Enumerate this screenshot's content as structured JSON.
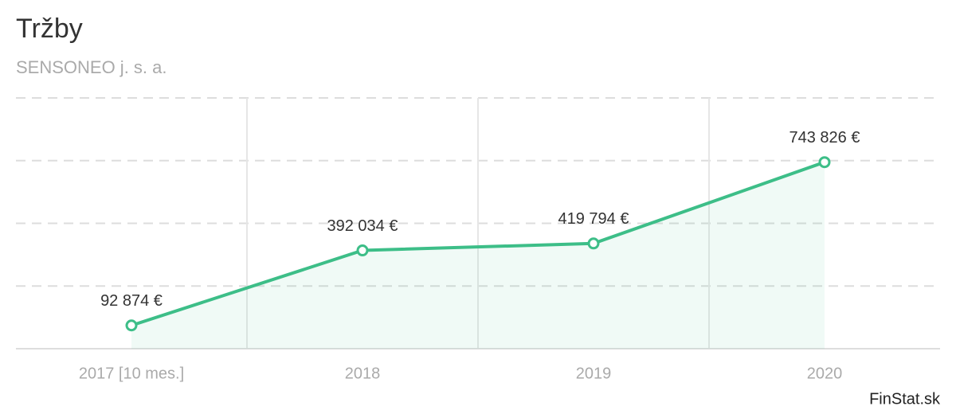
{
  "chart_data": {
    "type": "line",
    "title": "Tržby",
    "subtitle": "SENSONEO j. s. a.",
    "credit": "FinStat.sk",
    "categories": [
      "2017 [10 mes.]",
      "2018",
      "2019",
      "2020"
    ],
    "series": [
      {
        "name": "Tržby",
        "color": "#3dbe88",
        "values": [
          92874,
          392034,
          419794,
          743826
        ],
        "value_labels": [
          "92 874 €",
          "392 034 €",
          "419 794 €",
          "743 826 €"
        ]
      }
    ],
    "ylim": [
      0,
      1000000
    ],
    "yticks": [
      250000,
      500000,
      750000,
      1000000
    ],
    "grid": true,
    "area": true
  }
}
